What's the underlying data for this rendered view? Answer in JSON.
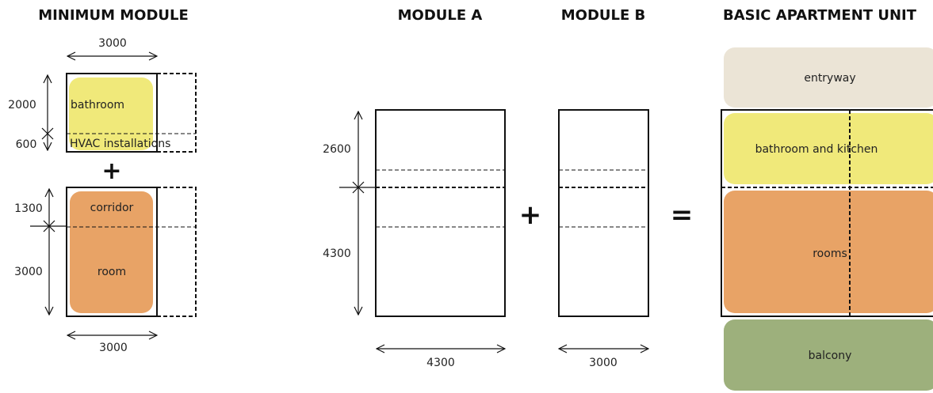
{
  "titles": {
    "minimum_module": "MINIMUM MODULE",
    "module_a": "MODULE A",
    "module_b": "MODULE B",
    "basic_unit": "BASIC APARTMENT UNIT"
  },
  "minimum_module": {
    "dim_top_width": "3000",
    "dim_bottom_width": "3000",
    "dim_bathroom": "2000",
    "dim_hvac": "600",
    "dim_corridor": "1300",
    "dim_room": "3000",
    "label_bathroom": "bathroom",
    "label_hvac": "HVAC installations",
    "label_corridor": "corridor",
    "label_room": "room"
  },
  "module_a": {
    "dim_upper": "2600",
    "dim_lower": "4300",
    "dim_width": "4300"
  },
  "module_b": {
    "dim_width": "3000"
  },
  "basic_unit": {
    "label_entryway": "entryway",
    "label_bath_kitchen": "bathroom and kitchen",
    "label_rooms": "rooms",
    "label_balcony": "balcony"
  },
  "symbols": {
    "plus_small": "+",
    "plus": "+",
    "equals": "="
  },
  "colors": {
    "bathroom": "#f0e97a",
    "rooms": "#e8a366",
    "entryway": "#ebe4d6",
    "balcony": "#9db07c"
  }
}
